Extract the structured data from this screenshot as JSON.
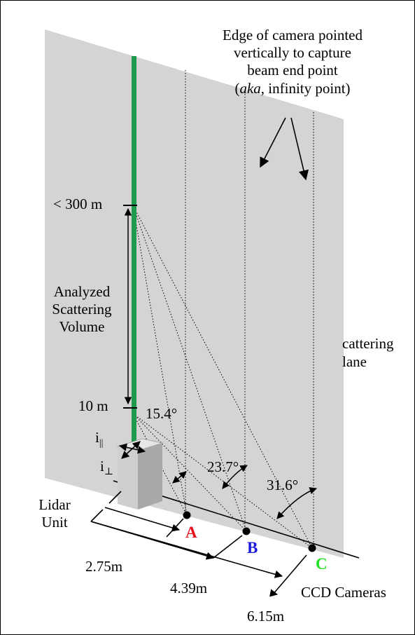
{
  "caption": {
    "line1": "Edge of camera pointed",
    "line2": "vertically to capture",
    "line3": "beam end point",
    "line4_open": "(",
    "line4_italic": "aka",
    "line4_rest": ", infinity point)"
  },
  "heights": {
    "top": "< 300 m",
    "bottom": "10 m"
  },
  "volume": {
    "line1": "Analyzed",
    "line2": "Scattering",
    "line3": "Volume"
  },
  "plane": {
    "line1": "cattering",
    "line2": "lane"
  },
  "angles": {
    "a": "15.4°",
    "b": "23.7°",
    "c": "31.6°"
  },
  "polarization": {
    "parallel_base": "i",
    "parallel_sub": "||",
    "perp_base": "i",
    "perp_sub": "⊥"
  },
  "lidar": {
    "line1": "Lidar",
    "line2": "Unit"
  },
  "cameras": {
    "a": {
      "label": "A",
      "color": "#e8101a"
    },
    "b": {
      "label": "B",
      "color": "#1a1ae0"
    },
    "c": {
      "label": "C",
      "color": "#22e022"
    },
    "group_label": "CCD Cameras"
  },
  "distances": {
    "a": "2.75m",
    "b": "4.39m",
    "c": "6.15m"
  },
  "colors": {
    "plane": "#d4d4d4",
    "beam": "#1f9a4c",
    "lidar_front": "#cfcfcf",
    "lidar_side": "#a9a9a9"
  }
}
